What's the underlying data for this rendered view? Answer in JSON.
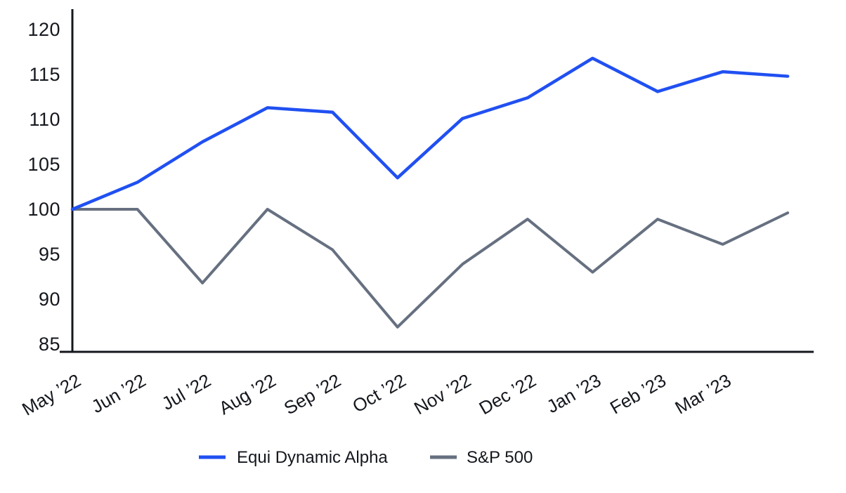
{
  "chart_data": {
    "type": "line",
    "title": "",
    "xlabel": "",
    "ylabel": "",
    "x_labels": [
      "May ’22",
      "Jun ’22",
      "Jul ’22",
      "Aug ’22",
      "Sep ’22",
      "Oct ’22",
      "Nov ’22",
      "Dec ’22",
      "Jan ’23",
      "Feb ’23",
      "Mar ’23"
    ],
    "labeled_points": 11,
    "data_points": 12,
    "y_ticks": [
      85,
      90,
      95,
      100,
      105,
      110,
      115,
      120
    ],
    "ylim": [
      84,
      122
    ],
    "grid": false,
    "legend_position": "bottom",
    "series": [
      {
        "name": "Equi Dynamic Alpha",
        "color": "#2050f2",
        "values": [
          100,
          103,
          107.5,
          111.3,
          110.8,
          103.5,
          110.1,
          112.4,
          116.8,
          113.1,
          115.3,
          114.8
        ]
      },
      {
        "name": "S&P 500",
        "color": "#667080",
        "values": [
          100,
          100,
          91.8,
          100,
          95.5,
          86.9,
          93.9,
          98.9,
          93.0,
          98.9,
          96.1,
          99.6
        ]
      }
    ],
    "axis_color": "#14171d",
    "text_color": "#14171d"
  }
}
